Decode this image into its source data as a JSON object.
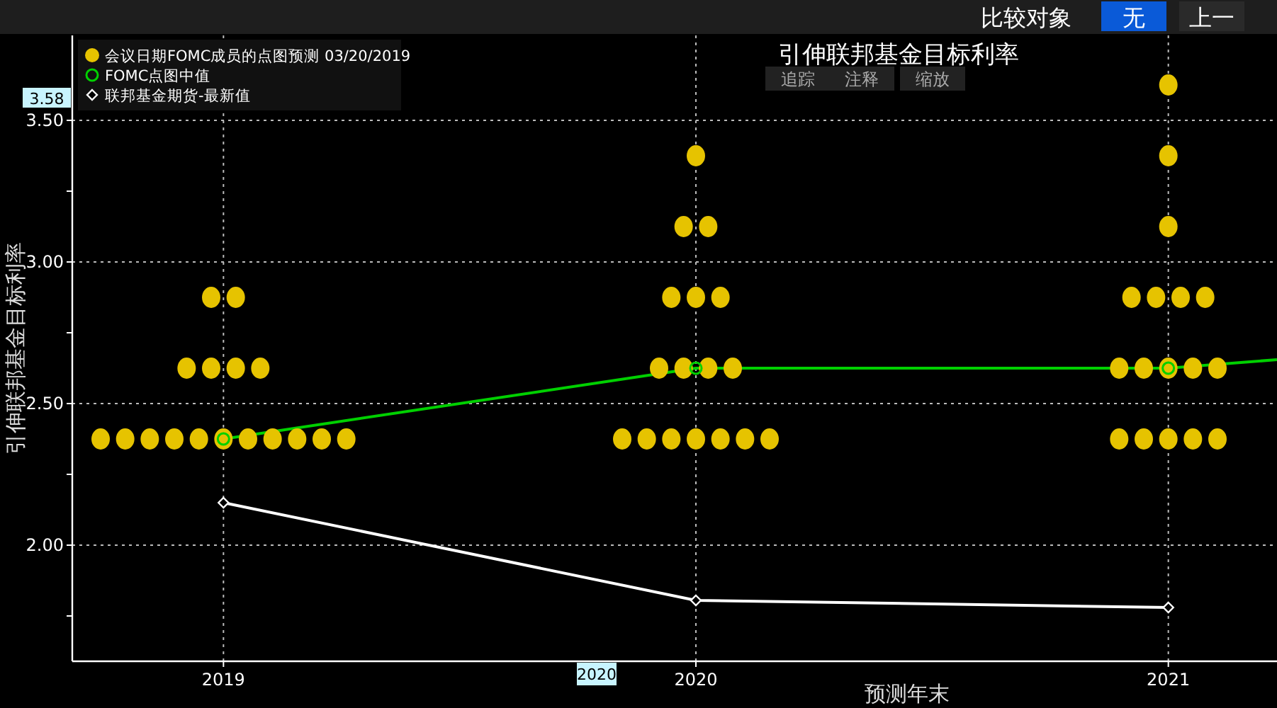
{
  "chart_data": {
    "type": "scatter",
    "title": "引伸联邦基金目标利率",
    "xlabel": "预测年末",
    "ylabel": "引伸联邦基金目标利率",
    "xlim": [
      2018.68,
      2021.23
    ],
    "ylim": [
      1.59,
      3.8
    ],
    "xticks": [
      2019,
      2020,
      2021
    ],
    "yticks": [
      {
        "value": 1.75,
        "label": null
      },
      {
        "value": 2,
        "label": "2.00"
      },
      {
        "value": 2.25,
        "label": null
      },
      {
        "value": 2.5,
        "label": "2.50"
      },
      {
        "value": 2.75,
        "label": null
      },
      {
        "value": 3,
        "label": "3.00"
      },
      {
        "value": 3.25,
        "label": null
      },
      {
        "value": 3.5,
        "label": "3.50"
      }
    ],
    "grid": true,
    "legend": "top left",
    "annotations": [
      {
        "text": "3.58",
        "y": 3.58
      },
      "2020",
      "比较对象",
      "无",
      "上一",
      "追踪",
      "注释",
      "缩放"
    ],
    "series": [
      {
        "name": "会议日期FOMC成员的点图预测 03/20/2019",
        "marker": "circle",
        "color": "#e6c300",
        "x": [
          2018.974,
          2019.026,
          2018.922,
          2018.974,
          2019.026,
          2019.078,
          2018.74,
          2018.792,
          2018.844,
          2018.896,
          2018.948,
          2019.0,
          2019.052,
          2019.104,
          2019.156,
          2019.208,
          2019.26,
          2020.0,
          2019.974,
          2020.026,
          2019.948,
          2020.0,
          2020.052,
          2019.922,
          2019.974,
          2020.026,
          2020.078,
          2019.844,
          2019.896,
          2019.948,
          2020.0,
          2020.052,
          2020.104,
          2020.156,
          2021.0,
          2021.0,
          2021.0,
          2020.922,
          2020.974,
          2021.026,
          2021.078,
          2020.896,
          2020.948,
          2021.0,
          2021.052,
          2021.104,
          2020.896,
          2020.948,
          2021.0,
          2021.052,
          2021.104
        ],
        "values": [
          2.875,
          2.875,
          2.625,
          2.625,
          2.625,
          2.625,
          2.375,
          2.375,
          2.375,
          2.375,
          2.375,
          2.375,
          2.375,
          2.375,
          2.375,
          2.375,
          2.375,
          3.375,
          3.125,
          3.125,
          2.875,
          2.875,
          2.875,
          2.625,
          2.625,
          2.625,
          2.625,
          2.375,
          2.375,
          2.375,
          2.375,
          2.375,
          2.375,
          2.375,
          3.625,
          3.375,
          3.125,
          2.875,
          2.875,
          2.875,
          2.875,
          2.625,
          2.625,
          2.625,
          2.625,
          2.625,
          2.375,
          2.375,
          2.375,
          2.375,
          2.375
        ]
      },
      {
        "name": "FOMC点图中值",
        "type": "line",
        "marker": "circle",
        "color": "#00d000",
        "x": [
          2019,
          2020,
          2021,
          2021.23
        ],
        "values": [
          2.375,
          2.625,
          2.625,
          2.655
        ]
      },
      {
        "name": "联邦基金期货-最新值",
        "type": "line",
        "marker": "diamond",
        "color": "#ffffff",
        "x": [
          2019,
          2020,
          2021
        ],
        "values": [
          2.15,
          1.805,
          1.78
        ]
      }
    ]
  }
}
